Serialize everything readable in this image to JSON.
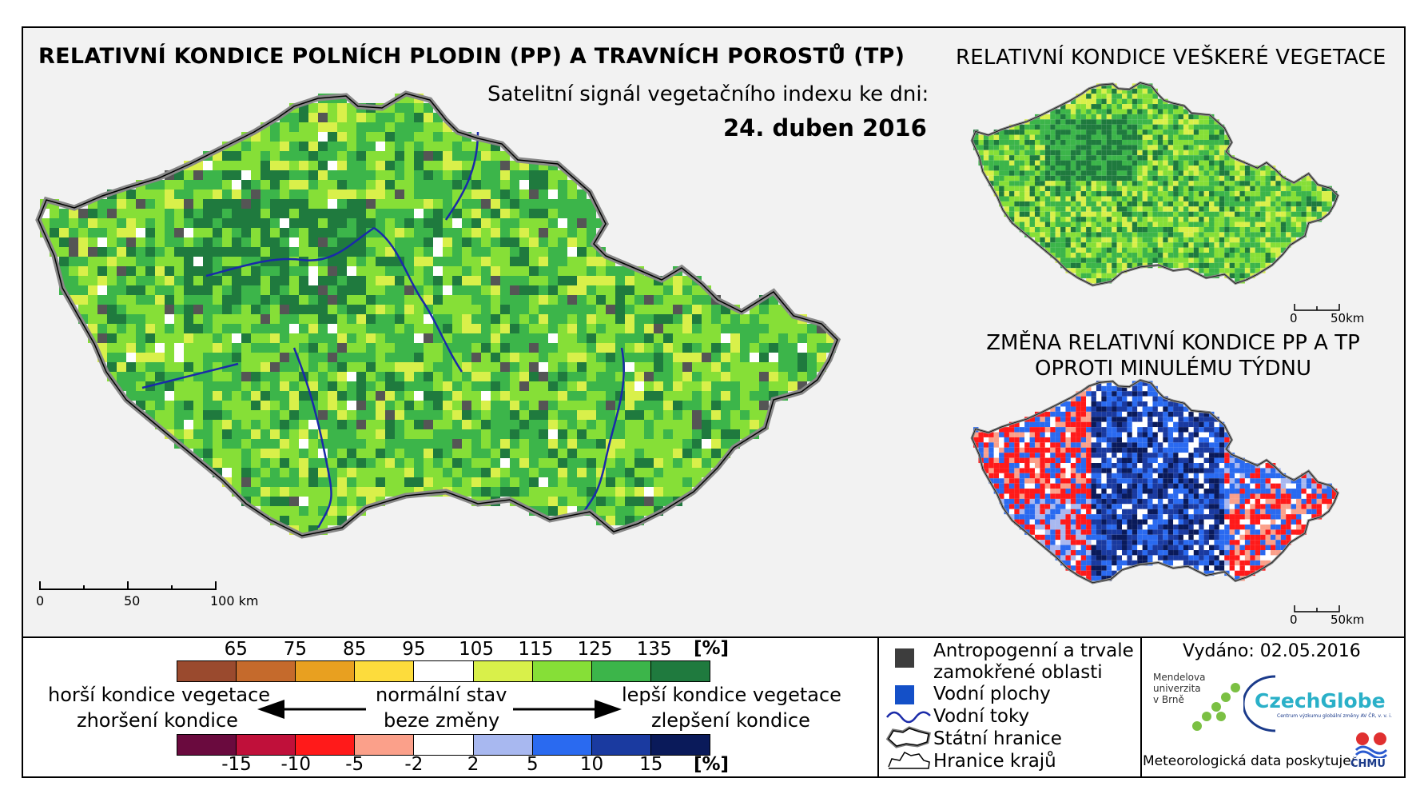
{
  "titles": {
    "main": "RELATIVNÍ KONDICE POLNÍCH PLODIN (PP) A TRAVNÍCH POROSTŮ (TP)",
    "subtitle": "Satelitní signál vegetačního indexu ke dni:",
    "date": "24. duben 2016",
    "right_top": "RELATIVNÍ KONDICE VEŠKERÉ VEGETACE",
    "right_bottom_line1": "ZMĚNA RELATIVNÍ KONDICE PP A TP",
    "right_bottom_line2": "OPROTI MINULÉMU TÝDNU"
  },
  "scale_main": {
    "t0": "0",
    "t50": "50",
    "t100": "100 km"
  },
  "scale_small": {
    "t0": "0",
    "t50": "50km"
  },
  "condition_legend": {
    "ticks": [
      "65",
      "75",
      "85",
      "95",
      "105",
      "115",
      "125",
      "135"
    ],
    "unit": "[%]",
    "colors": [
      "#9a4a2e",
      "#c56a2c",
      "#e8a020",
      "#fddc3c",
      "#ffffff",
      "#d9f04a",
      "#86df37",
      "#3cb54a",
      "#1f7a3e"
    ]
  },
  "change_legend": {
    "ticks": [
      "-15",
      "-10",
      "-5",
      "-2",
      "2",
      "5",
      "10",
      "15"
    ],
    "unit": "[%]",
    "colors": [
      "#6a0a3e",
      "#c0103a",
      "#ff1a1a",
      "#fba08a",
      "#ffffff",
      "#a8b8f0",
      "#2a6af0",
      "#1a3aa0",
      "#0a1a5a"
    ]
  },
  "scale_text": {
    "worse1": "horší kondice vegetace",
    "worse2": "zhoršení kondice",
    "normal1": "normální stav",
    "normal2": "beze změny",
    "better1": "lepší kondice vegetace",
    "better2": "zlepšení kondice"
  },
  "symbols": {
    "anthropogenic1": "Antropogenní a trvale",
    "anthropogenic2": "zamokřené oblasti",
    "water_bodies": "Vodní plochy",
    "rivers": "Vodní toky",
    "state_border": "Státní hranice",
    "region_border": "Hranice krajů"
  },
  "issued": "Vydáno: 02.05.2016",
  "provider": "Meteorologická data poskytuje:",
  "logos": {
    "mendel_1": "Mendelova",
    "mendel_2": "univerzita",
    "mendel_3": "v Brně",
    "czechglobe": "CzechGlobe",
    "czechglobe_sub": "Centrum výzkumu globální změny AV ČR, v. v. i.",
    "chmu": "ČHMÚ"
  }
}
